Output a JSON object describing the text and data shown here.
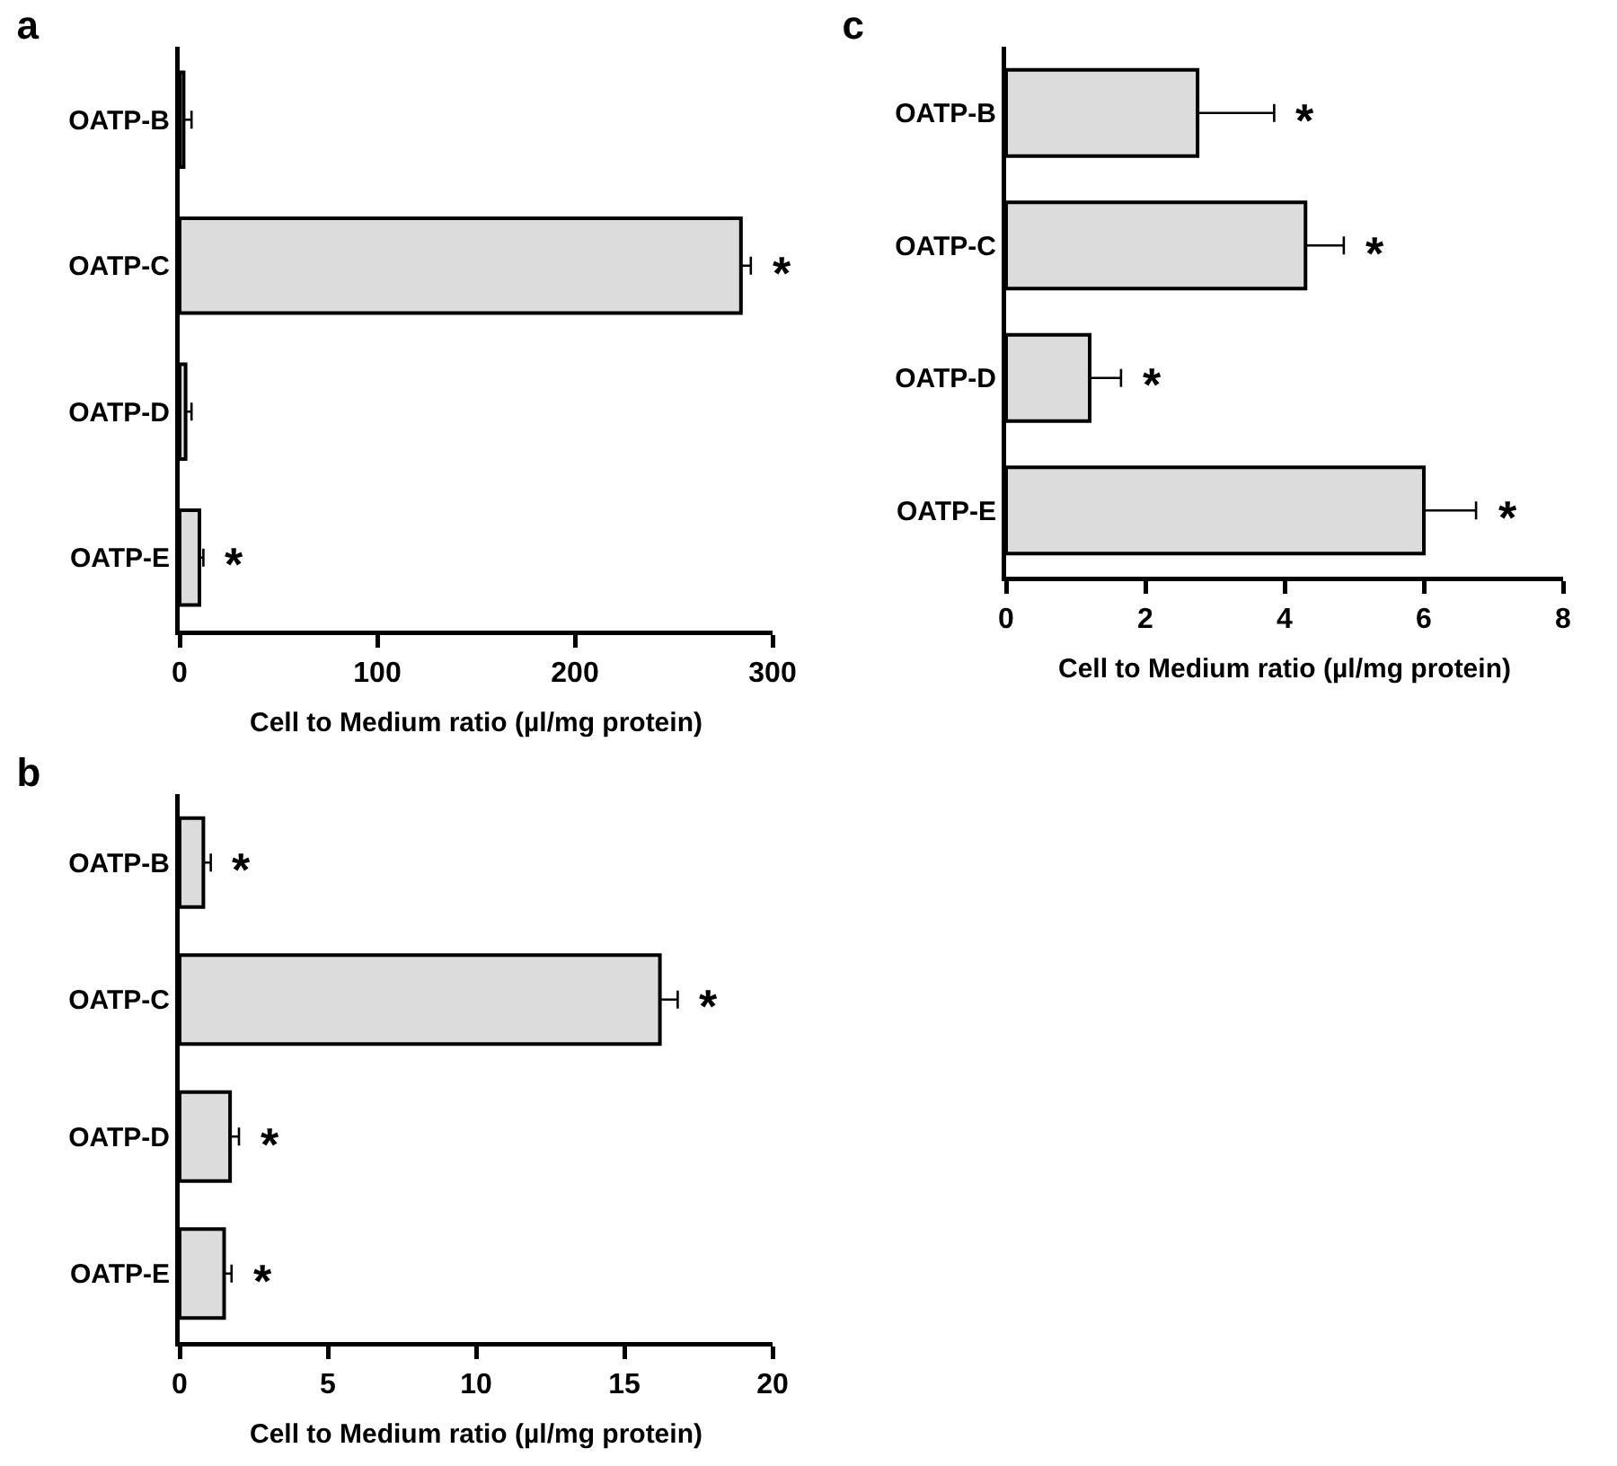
{
  "chart_data": [
    {
      "type": "bar",
      "title": "a",
      "orientation": "horizontal",
      "categories": [
        "OATP-B",
        "OATP-C",
        "OATP-D",
        "OATP-E"
      ],
      "values": [
        2,
        284,
        3,
        10
      ],
      "errors": [
        4,
        5,
        3,
        2
      ],
      "color": "#dcdcdc",
      "xlim": [
        0,
        300
      ],
      "xticks": [
        0,
        100,
        200,
        300
      ],
      "xlabel": "Cell to Medium ratio (µl/mg protein)",
      "grid": false,
      "annotations": [
        {
          "text": "*",
          "x": 289,
          "y": "OATP-C"
        },
        {
          "text": "*",
          "x": 12,
          "y": "OATP-E"
        }
      ]
    },
    {
      "type": "bar",
      "title": "b",
      "orientation": "horizontal",
      "categories": [
        "OATP-B",
        "OATP-C",
        "OATP-D",
        "OATP-E"
      ],
      "values": [
        0.8,
        16.2,
        1.7,
        1.5
      ],
      "errors": [
        0.25,
        0.6,
        0.3,
        0.25
      ],
      "color": "#dcdcdc",
      "xlim": [
        0,
        20
      ],
      "xticks": [
        0,
        5,
        10,
        15,
        20
      ],
      "xlabel": "Cell to Medium ratio (µl/mg protein)",
      "grid": false,
      "annotations": [
        {
          "text": "*",
          "x": 1.05,
          "y": "OATP-B"
        },
        {
          "text": "*",
          "x": 16.8,
          "y": "OATP-C"
        },
        {
          "text": "*",
          "x": 2,
          "y": "OATP-D"
        },
        {
          "text": "*",
          "x": 1.75,
          "y": "OATP-E"
        }
      ]
    },
    {
      "type": "bar",
      "title": "c",
      "orientation": "horizontal",
      "categories": [
        "OATP-B",
        "OATP-C",
        "OATP-D",
        "OATP-E"
      ],
      "values": [
        2.75,
        4.3,
        1.2,
        6
      ],
      "errors": [
        1.1,
        0.55,
        0.45,
        0.75
      ],
      "color": "#dcdcdc",
      "xlim": [
        0,
        8
      ],
      "xticks": [
        0,
        2,
        4,
        6,
        8
      ],
      "xlabel": "Cell to Medium ratio (µl/mg protein)",
      "grid": false,
      "annotations": [
        {
          "text": "*",
          "x": 3.85,
          "y": "OATP-B"
        },
        {
          "text": "*",
          "x": 4.85,
          "y": "OATP-C"
        },
        {
          "text": "*",
          "x": 1.65,
          "y": "OATP-D"
        },
        {
          "text": "*",
          "x": 6.75,
          "y": "OATP-E"
        }
      ]
    }
  ]
}
